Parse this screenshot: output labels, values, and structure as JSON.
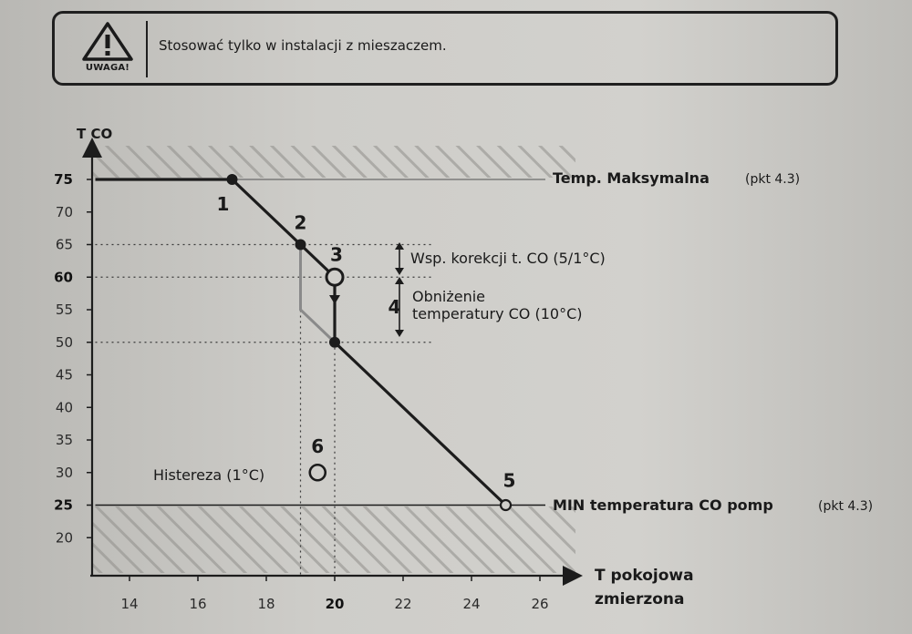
{
  "warning": {
    "label": "UWAGA!",
    "text": "Stosować tylko w instalacji z mieszaczem.",
    "icon": "warning-triangle-icon"
  },
  "chart_data": {
    "type": "line",
    "ylabel": "T CO",
    "xlabel_line1": "T pokojowa",
    "xlabel_line2": "zmierzona",
    "xlim": [
      13,
      27
    ],
    "ylim": [
      15,
      82
    ],
    "x_ticks": [
      14,
      16,
      18,
      20,
      22,
      24,
      26
    ],
    "y_ticks": [
      20,
      25,
      30,
      35,
      40,
      45,
      50,
      55,
      60,
      65,
      70,
      75
    ],
    "bold_x_ticks": [
      20
    ],
    "bold_y_ticks": [
      25,
      60,
      75
    ],
    "x_tick_labels": [
      "14",
      "16",
      "18",
      "20",
      "22",
      "24",
      "26"
    ],
    "y_tick_labels": [
      "20",
      "25",
      "30",
      "35",
      "40",
      "45",
      "50",
      "55",
      "60",
      "65",
      "70",
      "75"
    ],
    "max_temp": 75,
    "min_temp": 25,
    "max_label": "Temp. Maksymalna",
    "max_ref": "(pkt 4.3)",
    "min_label": "MIN temperatura CO pomp",
    "min_ref": "(pkt 4.3)",
    "main_curve": [
      [
        13,
        75
      ],
      [
        17,
        75
      ],
      [
        19,
        65
      ],
      [
        20,
        60
      ],
      [
        20,
        50
      ],
      [
        25,
        25
      ]
    ],
    "hysteresis_curve": [
      [
        19,
        65
      ],
      [
        19,
        55
      ],
      [
        20,
        50
      ]
    ],
    "points": [
      {
        "label": "1",
        "x": 17,
        "y": 75
      },
      {
        "label": "2",
        "x": 19,
        "y": 65
      },
      {
        "label": "3",
        "x": 20,
        "y": 60
      },
      {
        "label": "4",
        "x": 21,
        "y": 55
      },
      {
        "label": "5",
        "x": 25,
        "y": 25
      },
      {
        "label": "6",
        "x": 19.5,
        "y": 30
      }
    ],
    "annotations": {
      "correction_label": "Wsp. korekcji t. CO (5/1°C)",
      "reduction_line1": "Obniżenie",
      "reduction_line2": "temperatury CO (10°C)",
      "hysteresis_label": "Histereza (1°C)"
    }
  },
  "colors": {
    "line": "#1c1c1c",
    "grey_line": "#8a8a8a",
    "hatch": "#8f8e8a"
  }
}
